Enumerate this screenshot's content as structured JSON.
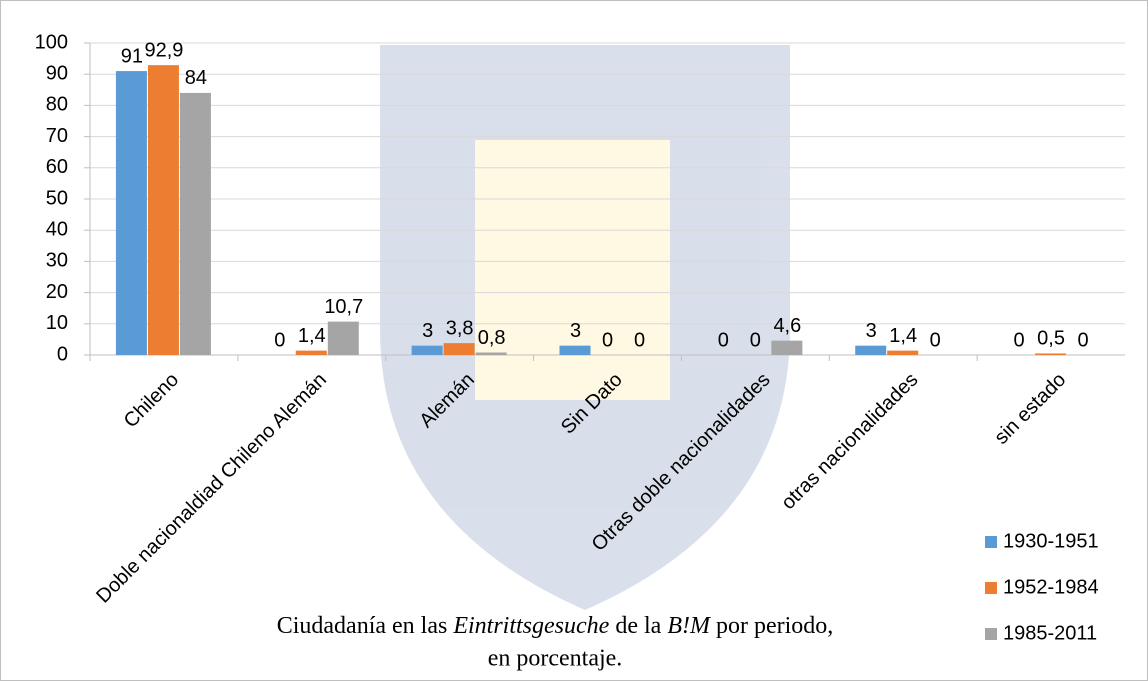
{
  "chart_data": {
    "type": "bar",
    "categories": [
      "Chileno",
      "Doble nacionaldiad Chileno Alemán",
      "Alemán",
      "Sin Dato",
      "Otras doble nacionalidades",
      "otras nacionalidades",
      "sin estado"
    ],
    "series": [
      {
        "name": "1930-1951",
        "color": "#5b9bd5",
        "values": [
          91,
          0,
          3,
          3,
          0,
          3,
          0
        ],
        "value_labels": [
          "91",
          "0",
          "3",
          "3",
          "0",
          "3",
          "0"
        ]
      },
      {
        "name": "1952-1984",
        "color": "#ed7d31",
        "values": [
          92.9,
          1.4,
          3.8,
          0,
          0,
          1.4,
          0.5
        ],
        "value_labels": [
          "92,9",
          "1,4",
          "3,8",
          "0",
          "0",
          "1,4",
          "0,5"
        ]
      },
      {
        "name": "1985-2011",
        "color": "#a5a5a5",
        "values": [
          84,
          10.7,
          0.8,
          0,
          4.6,
          0,
          0
        ],
        "value_labels": [
          "84",
          "10,7",
          "0,8",
          "0",
          "4,6",
          "0",
          "0"
        ]
      }
    ],
    "ylim": [
      0,
      100
    ],
    "yticks": [
      0,
      10,
      20,
      30,
      40,
      50,
      60,
      70,
      80,
      90,
      100
    ],
    "grid": true,
    "legend": "bottom-right",
    "caption": {
      "line1": [
        "Ciudadanía en las ",
        "Eintrittsgesuche",
        " de la ",
        "B!M",
        " por periodo,"
      ],
      "line2": "en porcentaje."
    }
  }
}
